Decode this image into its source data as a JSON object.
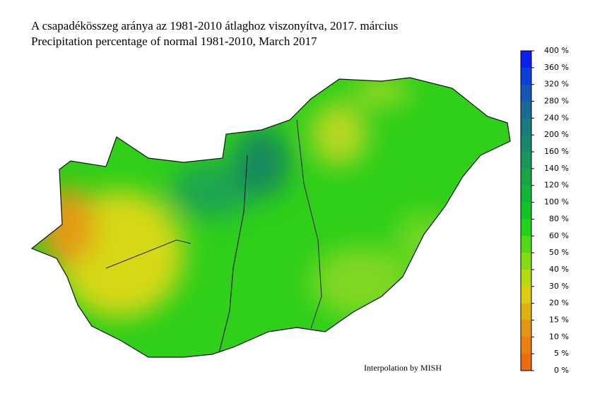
{
  "header": {
    "title_hu": "A csapadékösszeg aránya az 1981-2010 átlaghoz viszonyítva, 2017. március",
    "title_en": "Precipitation percentage of normal 1981-2010, March 2017"
  },
  "legend": {
    "labels": [
      "400 %",
      "360 %",
      "320 %",
      "280 %",
      "240 %",
      "200 %",
      "160 %",
      "140 %",
      "120 %",
      "100 %",
      "80 %",
      "60 %",
      "50 %",
      "40 %",
      "30 %",
      "20 %",
      "15 %",
      "10 %",
      "5 %",
      "0 %"
    ],
    "colors": [
      "#0a1ff0",
      "#0a3fd8",
      "#1356b8",
      "#1a6a98",
      "#1b7a80",
      "#1b876a",
      "#1a9658",
      "#15a646",
      "#10b636",
      "#0fc626",
      "#22d418",
      "#52da14",
      "#84dc12",
      "#b6dc10",
      "#dccd10",
      "#e0b010",
      "#e39612",
      "#e88012",
      "#ee6c10"
    ]
  },
  "credit": "Interpolation by MISH"
}
